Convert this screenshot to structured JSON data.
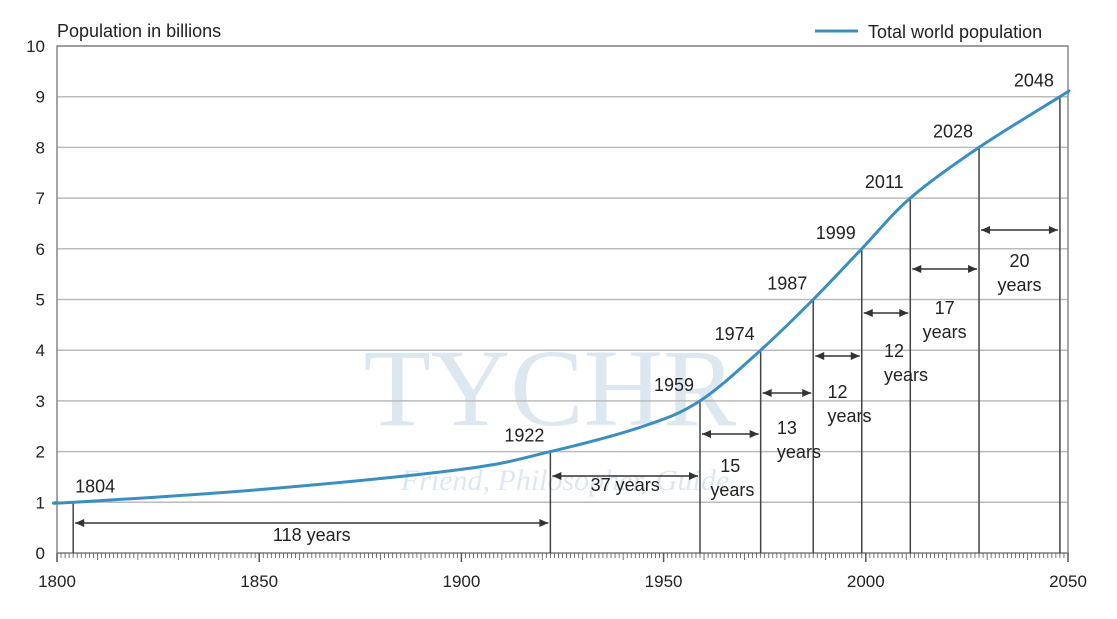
{
  "chart_data": {
    "type": "line",
    "ylabel": "Population in billions",
    "xlabel": "",
    "xlim": [
      1800,
      2050
    ],
    "ylim": [
      0,
      10
    ],
    "x_ticks": [
      1800,
      1850,
      1900,
      1950,
      2000,
      2050
    ],
    "y_ticks": [
      0,
      1,
      2,
      3,
      4,
      5,
      6,
      7,
      8,
      9,
      10
    ],
    "grid": "horizontal",
    "legend_position": "top-right",
    "series": [
      {
        "name": "Total world population",
        "color": "#3b8fc0",
        "points": [
          [
            1800,
            1.0
          ],
          [
            1804,
            1.0
          ],
          [
            1850,
            1.25
          ],
          [
            1900,
            1.65
          ],
          [
            1922,
            2.0
          ],
          [
            1945,
            2.5
          ],
          [
            1959,
            3.0
          ],
          [
            1974,
            4.0
          ],
          [
            1987,
            5.0
          ],
          [
            1999,
            6.0
          ],
          [
            2011,
            7.0
          ],
          [
            2028,
            8.0
          ],
          [
            2048,
            9.0
          ],
          [
            2050,
            9.1
          ]
        ]
      }
    ],
    "milestones": [
      {
        "year": 1804,
        "value": 1,
        "label": "1804"
      },
      {
        "year": 1922,
        "value": 2,
        "label": "1922"
      },
      {
        "year": 1959,
        "value": 3,
        "label": "1959"
      },
      {
        "year": 1974,
        "value": 4,
        "label": "1974"
      },
      {
        "year": 1987,
        "value": 5,
        "label": "1987"
      },
      {
        "year": 1999,
        "value": 6,
        "label": "1999"
      },
      {
        "year": 2011,
        "value": 7,
        "label": "2011"
      },
      {
        "year": 2028,
        "value": 8,
        "label": "2028"
      },
      {
        "year": 2048,
        "value": 9,
        "label": "2048"
      }
    ],
    "intervals": [
      {
        "from": 1804,
        "to": 1922,
        "label": "118 years"
      },
      {
        "from": 1922,
        "to": 1959,
        "label": "37 years"
      },
      {
        "from": 1959,
        "to": 1974,
        "label": "15",
        "label2": "years"
      },
      {
        "from": 1974,
        "to": 1987,
        "label": "13",
        "label2": "years"
      },
      {
        "from": 1987,
        "to": 1999,
        "label": "12",
        "label2": "years"
      },
      {
        "from": 1999,
        "to": 2011,
        "label": "12",
        "label2": "years"
      },
      {
        "from": 2011,
        "to": 2028,
        "label": "17",
        "label2": "years"
      },
      {
        "from": 2028,
        "to": 2048,
        "label": "20",
        "label2": "years"
      }
    ]
  },
  "watermark": {
    "text": "TYCHR",
    "tagline": "Friend, Philosopher, Guide"
  }
}
